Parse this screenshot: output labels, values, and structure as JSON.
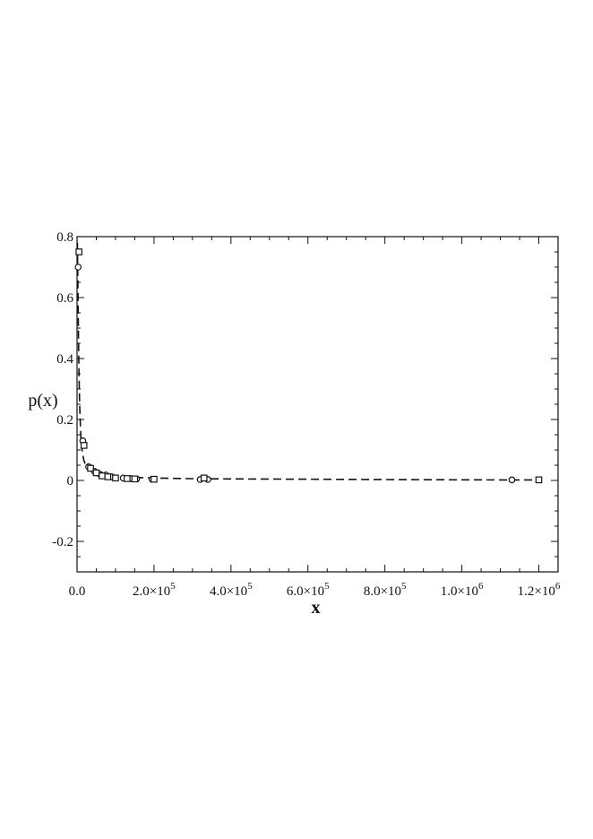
{
  "chart_data": {
    "type": "scatter",
    "xlabel": "x",
    "ylabel": "p(x)",
    "xlim": [
      0,
      1250000
    ],
    "ylim": [
      -0.3,
      0.8
    ],
    "grid": false,
    "x_ticks": [
      {
        "value": 0,
        "label": "0.0"
      },
      {
        "value": 200000,
        "mant": "2.0",
        "exp": "5"
      },
      {
        "value": 400000,
        "mant": "4.0",
        "exp": "5"
      },
      {
        "value": 600000,
        "mant": "6.0",
        "exp": "5"
      },
      {
        "value": 800000,
        "mant": "8.0",
        "exp": "5"
      },
      {
        "value": 1000000,
        "mant": "1.0",
        "exp": "6"
      },
      {
        "value": 1200000,
        "mant": "1.2",
        "exp": "6"
      }
    ],
    "y_ticks": [
      {
        "value": 0.8,
        "label": "0.8"
      },
      {
        "value": 0.6,
        "label": "0.6"
      },
      {
        "value": 0.4,
        "label": "0.4"
      },
      {
        "value": 0.2,
        "label": "0.2"
      },
      {
        "value": 0,
        "label": "0"
      },
      {
        "value": -0.2,
        "label": "-0.2"
      }
    ],
    "series": [
      {
        "marker": "circle",
        "x": [
          3000,
          15000,
          30000,
          45000,
          60000,
          75000,
          90000,
          120000,
          140000,
          155000,
          195000,
          320000,
          340000,
          1130000
        ],
        "y": [
          0.7,
          0.13,
          0.045,
          0.03,
          0.02,
          0.018,
          0.012,
          0.008,
          0.006,
          0.005,
          0.004,
          0.003,
          0.003,
          0.002
        ]
      },
      {
        "marker": "square",
        "x": [
          5000,
          18000,
          35000,
          50000,
          65000,
          80000,
          100000,
          130000,
          150000,
          200000,
          330000,
          1200000
        ],
        "y": [
          0.75,
          0.115,
          0.04,
          0.025,
          0.015,
          0.012,
          0.008,
          0.006,
          0.005,
          0.004,
          0.008,
          0.002
        ]
      },
      {
        "marker": "none",
        "line": "dashed",
        "x": [
          1000,
          2000,
          3000,
          4000,
          5000,
          7000,
          10000,
          14000,
          18000,
          25000,
          35000,
          50000,
          70000,
          100000,
          150000,
          200000,
          300000,
          400000,
          600000,
          800000,
          1000000,
          1200000
        ],
        "y": [
          0.78,
          0.66,
          0.55,
          0.45,
          0.36,
          0.24,
          0.14,
          0.09,
          0.065,
          0.045,
          0.032,
          0.024,
          0.018,
          0.013,
          0.01,
          0.008,
          0.006,
          0.005,
          0.004,
          0.003,
          0.002,
          0.0015
        ]
      }
    ]
  },
  "colors": {
    "ink": "#111111",
    "background": "#ffffff"
  }
}
